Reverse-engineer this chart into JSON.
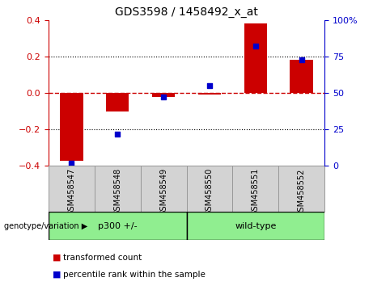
{
  "title": "GDS3598 / 1458492_x_at",
  "samples": [
    "GSM458547",
    "GSM458548",
    "GSM458549",
    "GSM458550",
    "GSM458551",
    "GSM458552"
  ],
  "bar_values": [
    -0.37,
    -0.1,
    -0.02,
    -0.01,
    0.38,
    0.18
  ],
  "dot_values": [
    2,
    22,
    47,
    55,
    82,
    73
  ],
  "bar_color": "#cc0000",
  "dot_color": "#0000cc",
  "zero_line_color": "#cc0000",
  "grid_color": "#000000",
  "ylim_left": [
    -0.4,
    0.4
  ],
  "ylim_right": [
    0,
    100
  ],
  "yticks_left": [
    -0.4,
    -0.2,
    0.0,
    0.2,
    0.4
  ],
  "yticks_right": [
    0,
    25,
    50,
    75,
    100
  ],
  "group_labels": [
    "p300 +/-",
    "wild-type"
  ],
  "group_sizes": [
    3,
    3
  ],
  "group_color": "#90ee90",
  "group_header": "genotype/variation",
  "legend_bar": "transformed count",
  "legend_dot": "percentile rank within the sample",
  "bar_width": 0.5,
  "tick_bg": "#d3d3d3",
  "tick_edge": "#999999"
}
